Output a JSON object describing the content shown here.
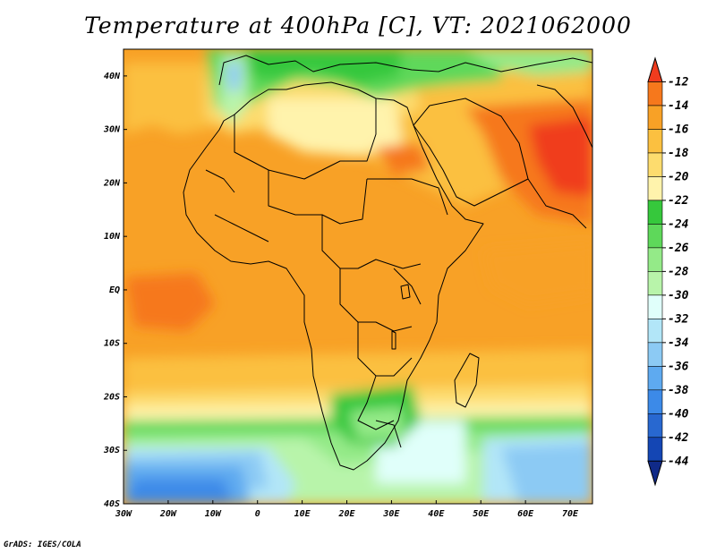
{
  "title": "Temperature at 400hPa [C], VT: 2021062000",
  "credit": "GrADS: IGES/COLA",
  "map": {
    "lon_range": [
      -30,
      75
    ],
    "lat_range": [
      -40,
      45
    ],
    "lon_ticks": [
      {
        "value": -30,
        "label": "30W"
      },
      {
        "value": -20,
        "label": "20W"
      },
      {
        "value": -10,
        "label": "10W"
      },
      {
        "value": 0,
        "label": "0"
      },
      {
        "value": 10,
        "label": "10E"
      },
      {
        "value": 20,
        "label": "20E"
      },
      {
        "value": 30,
        "label": "30E"
      },
      {
        "value": 40,
        "label": "40E"
      },
      {
        "value": 50,
        "label": "50E"
      },
      {
        "value": 60,
        "label": "60E"
      },
      {
        "value": 70,
        "label": "70E"
      }
    ],
    "lat_ticks": [
      {
        "value": 40,
        "label": "40N"
      },
      {
        "value": 30,
        "label": "30N"
      },
      {
        "value": 20,
        "label": "20N"
      },
      {
        "value": 10,
        "label": "10N"
      },
      {
        "value": 0,
        "label": "EQ"
      },
      {
        "value": -10,
        "label": "10S"
      },
      {
        "value": -20,
        "label": "20S"
      },
      {
        "value": -30,
        "label": "30S"
      },
      {
        "value": -40,
        "label": "40S"
      }
    ]
  },
  "colorbar": {
    "levels": [
      "-12",
      "-14",
      "-16",
      "-18",
      "-20",
      "-22",
      "-24",
      "-26",
      "-28",
      "-30",
      "-32",
      "-34",
      "-36",
      "-38",
      "-40",
      "-42",
      "-44"
    ],
    "colors": [
      "#f03c1e",
      "#f6781c",
      "#f8a126",
      "#fbc040",
      "#fddc6e",
      "#fff3ac",
      "#36c83c",
      "#5ed85a",
      "#94ea88",
      "#b8f4aa",
      "#e0fffa",
      "#b2e6f8",
      "#8ccaf4",
      "#5eaaf0",
      "#3c8ae8",
      "#2868d0",
      "#1446b4",
      "#102a88"
    ]
  },
  "legend_colors": {
    "land_outline": "#000000"
  }
}
